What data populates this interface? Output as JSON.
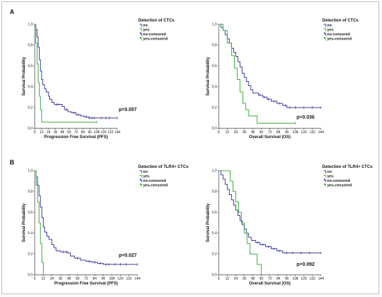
{
  "colors": {
    "no": "#3b3b9a",
    "yes": "#3aa83a"
  },
  "panels": [
    {
      "letter": "A",
      "row": 0
    },
    {
      "letter": "B",
      "row": 1
    }
  ],
  "chart_data": [
    {
      "type": "line",
      "panel": "A",
      "title": "Detection of CTCs",
      "xlabel": "Progression Free Survival (PFS)",
      "ylabel": "Survival Probability",
      "annotation": "p=0.057",
      "xlim": [
        0,
        144
      ],
      "ylim": [
        0,
        1.0
      ],
      "xticks": [
        "0",
        "12",
        "24",
        "36",
        "48",
        "60",
        "72",
        "84",
        "96",
        "108",
        "120",
        "132",
        "144"
      ],
      "yticks": [
        "0.0",
        "0.2",
        "0.4",
        "0.6",
        "0.8",
        "1.0"
      ],
      "legend": [
        "no",
        "yes",
        "no-censored",
        "yes-censored"
      ],
      "series": [
        {
          "name": "no",
          "step": [
            [
              0,
              1.0
            ],
            [
              2,
              0.95
            ],
            [
              4,
              0.88
            ],
            [
              6,
              0.78
            ],
            [
              8,
              0.66
            ],
            [
              10,
              0.55
            ],
            [
              12,
              0.47
            ],
            [
              14,
              0.42
            ],
            [
              17,
              0.38
            ],
            [
              20,
              0.35
            ],
            [
              24,
              0.31
            ],
            [
              26,
              0.28
            ],
            [
              30,
              0.25
            ],
            [
              34,
              0.23
            ],
            [
              48,
              0.21
            ],
            [
              52,
              0.18
            ],
            [
              58,
              0.16
            ],
            [
              64,
              0.15
            ],
            [
              72,
              0.13
            ],
            [
              80,
              0.12
            ],
            [
              86,
              0.11
            ],
            [
              94,
              0.1
            ],
            [
              144,
              0.1
            ]
          ],
          "censored": [
            [
              38,
              0.23
            ],
            [
              42,
              0.23
            ],
            [
              55,
              0.18
            ],
            [
              68,
              0.15
            ],
            [
              76,
              0.13
            ],
            [
              90,
              0.11
            ],
            [
              96,
              0.1
            ],
            [
              100,
              0.1
            ],
            [
              104,
              0.1
            ],
            [
              116,
              0.1
            ],
            [
              124,
              0.1
            ],
            [
              130,
              0.1
            ],
            [
              144,
              0.1
            ]
          ]
        },
        {
          "name": "yes",
          "step": [
            [
              0,
              1.0
            ],
            [
              2,
              0.82
            ],
            [
              4,
              0.62
            ],
            [
              6,
              0.44
            ],
            [
              8,
              0.31
            ],
            [
              10,
              0.18
            ],
            [
              12,
              0.06
            ],
            [
              108,
              0.06
            ]
          ],
          "censored": [
            [
              108,
              0.06
            ]
          ]
        }
      ]
    },
    {
      "type": "line",
      "panel": "A",
      "title": "Detection of CTCs",
      "xlabel": "Overall Survival (OS)",
      "ylabel": "Survival Probability",
      "annotation": "p=0.036",
      "xlim": [
        0,
        144
      ],
      "ylim": [
        0,
        1.0
      ],
      "xticks": [
        "0",
        "12",
        "24",
        "36",
        "48",
        "60",
        "72",
        "84",
        "96",
        "108",
        "120",
        "132",
        "144"
      ],
      "yticks": [
        "0.0",
        "0.2",
        "0.4",
        "0.6",
        "0.8",
        "1.0"
      ],
      "legend": [
        "no",
        "yes",
        "no-censored",
        "yes-censored"
      ],
      "series": [
        {
          "name": "no",
          "step": [
            [
              0,
              1.0
            ],
            [
              3,
              0.97
            ],
            [
              6,
              0.94
            ],
            [
              9,
              0.9
            ],
            [
              12,
              0.86
            ],
            [
              15,
              0.82
            ],
            [
              18,
              0.77
            ],
            [
              21,
              0.73
            ],
            [
              24,
              0.69
            ],
            [
              27,
              0.64
            ],
            [
              30,
              0.59
            ],
            [
              33,
              0.53
            ],
            [
              36,
              0.49
            ],
            [
              39,
              0.45
            ],
            [
              42,
              0.41
            ],
            [
              45,
              0.37
            ],
            [
              48,
              0.34
            ],
            [
              56,
              0.32
            ],
            [
              62,
              0.3
            ],
            [
              68,
              0.28
            ],
            [
              74,
              0.26
            ],
            [
              82,
              0.24
            ],
            [
              90,
              0.22
            ],
            [
              96,
              0.2
            ],
            [
              144,
              0.2
            ]
          ],
          "censored": [
            [
              58,
              0.32
            ],
            [
              64,
              0.3
            ],
            [
              70,
              0.28
            ],
            [
              78,
              0.26
            ],
            [
              86,
              0.24
            ],
            [
              94,
              0.22
            ],
            [
              100,
              0.2
            ],
            [
              108,
              0.2
            ],
            [
              120,
              0.2
            ],
            [
              132,
              0.2
            ],
            [
              144,
              0.2
            ]
          ]
        },
        {
          "name": "yes",
          "step": [
            [
              0,
              1.0
            ],
            [
              6,
              0.94
            ],
            [
              12,
              0.82
            ],
            [
              18,
              0.7
            ],
            [
              22,
              0.58
            ],
            [
              26,
              0.47
            ],
            [
              30,
              0.35
            ],
            [
              34,
              0.24
            ],
            [
              38,
              0.18
            ],
            [
              42,
              0.12
            ],
            [
              50,
              0.12
            ],
            [
              54,
              0.05
            ],
            [
              108,
              0.05
            ]
          ],
          "censored": [
            [
              108,
              0.05
            ]
          ]
        }
      ]
    },
    {
      "type": "line",
      "panel": "B",
      "title": "Detection of TLR4+ CTCs",
      "xlabel": "Progression Free Survival (PFS)",
      "ylabel": "Survival Probability",
      "annotation": "p=0.027",
      "xlim": [
        0,
        144
      ],
      "ylim": [
        0,
        1.0
      ],
      "xticks": [
        "0",
        "12",
        "24",
        "36",
        "48",
        "60",
        "72",
        "84",
        "96",
        "108",
        "120",
        "132",
        "144"
      ],
      "yticks": [
        "0.0",
        "0.2",
        "0.4",
        "0.6",
        "0.8",
        "1.0"
      ],
      "legend": [
        "no",
        "yes",
        "no-censored",
        "yes-censored"
      ],
      "series": [
        {
          "name": "no",
          "step": [
            [
              0,
              1.0
            ],
            [
              2,
              0.94
            ],
            [
              4,
              0.86
            ],
            [
              6,
              0.76
            ],
            [
              8,
              0.65
            ],
            [
              10,
              0.55
            ],
            [
              12,
              0.46
            ],
            [
              14,
              0.41
            ],
            [
              17,
              0.37
            ],
            [
              20,
              0.34
            ],
            [
              24,
              0.29
            ],
            [
              27,
              0.26
            ],
            [
              30,
              0.23
            ],
            [
              36,
              0.22
            ],
            [
              46,
              0.21
            ],
            [
              50,
              0.18
            ],
            [
              56,
              0.16
            ],
            [
              64,
              0.14
            ],
            [
              72,
              0.13
            ],
            [
              80,
              0.12
            ],
            [
              88,
              0.11
            ],
            [
              96,
              0.1
            ],
            [
              144,
              0.1
            ]
          ],
          "censored": [
            [
              40,
              0.22
            ],
            [
              44,
              0.22
            ],
            [
              60,
              0.16
            ],
            [
              76,
              0.13
            ],
            [
              84,
              0.12
            ],
            [
              92,
              0.11
            ],
            [
              100,
              0.1
            ],
            [
              104,
              0.1
            ],
            [
              112,
              0.1
            ],
            [
              120,
              0.1
            ],
            [
              128,
              0.1
            ],
            [
              144,
              0.1
            ]
          ]
        },
        {
          "name": "yes",
          "step": [
            [
              0,
              1.0
            ],
            [
              2,
              0.86
            ],
            [
              4,
              0.7
            ],
            [
              6,
              0.5
            ],
            [
              8,
              0.3
            ],
            [
              10,
              0.12
            ],
            [
              12,
              0.0
            ]
          ],
          "censored": []
        }
      ]
    },
    {
      "type": "line",
      "panel": "B",
      "title": "Detection of TLR4+ CTCs",
      "xlabel": "Overall Survival (OS)",
      "ylabel": "Survival Probability",
      "annotation": "p=0.092",
      "xlim": [
        0,
        144
      ],
      "ylim": [
        0,
        1.0
      ],
      "xticks": [
        "0",
        "12",
        "24",
        "36",
        "48",
        "60",
        "72",
        "84",
        "96",
        "108",
        "120",
        "132",
        "144"
      ],
      "yticks": [
        "0.0",
        "0.2",
        "0.4",
        "0.6",
        "0.8",
        "1.0"
      ],
      "legend": [
        "no",
        "yes",
        "no-censored",
        "yes-censored"
      ],
      "series": [
        {
          "name": "no",
          "step": [
            [
              0,
              1.0
            ],
            [
              3,
              0.96
            ],
            [
              6,
              0.92
            ],
            [
              9,
              0.87
            ],
            [
              12,
              0.82
            ],
            [
              15,
              0.77
            ],
            [
              18,
              0.72
            ],
            [
              21,
              0.67
            ],
            [
              24,
              0.62
            ],
            [
              27,
              0.57
            ],
            [
              30,
              0.52
            ],
            [
              33,
              0.48
            ],
            [
              36,
              0.44
            ],
            [
              39,
              0.4
            ],
            [
              42,
              0.36
            ],
            [
              46,
              0.33
            ],
            [
              52,
              0.31
            ],
            [
              58,
              0.29
            ],
            [
              66,
              0.27
            ],
            [
              74,
              0.25
            ],
            [
              82,
              0.23
            ],
            [
              90,
              0.21
            ],
            [
              144,
              0.21
            ]
          ],
          "censored": [
            [
              55,
              0.31
            ],
            [
              62,
              0.29
            ],
            [
              70,
              0.27
            ],
            [
              78,
              0.25
            ],
            [
              86,
              0.23
            ],
            [
              96,
              0.21
            ],
            [
              104,
              0.21
            ],
            [
              116,
              0.21
            ],
            [
              128,
              0.21
            ],
            [
              144,
              0.21
            ]
          ]
        },
        {
          "name": "yes",
          "step": [
            [
              0,
              1.0
            ],
            [
              12,
              1.0
            ],
            [
              16,
              0.9
            ],
            [
              20,
              0.8
            ],
            [
              24,
              0.7
            ],
            [
              28,
              0.6
            ],
            [
              32,
              0.5
            ],
            [
              36,
              0.4
            ],
            [
              40,
              0.3
            ],
            [
              44,
              0.2
            ],
            [
              50,
              0.2
            ],
            [
              54,
              0.1
            ],
            [
              58,
              0.1
            ],
            [
              60,
              0.0
            ]
          ],
          "censored": []
        }
      ]
    }
  ]
}
